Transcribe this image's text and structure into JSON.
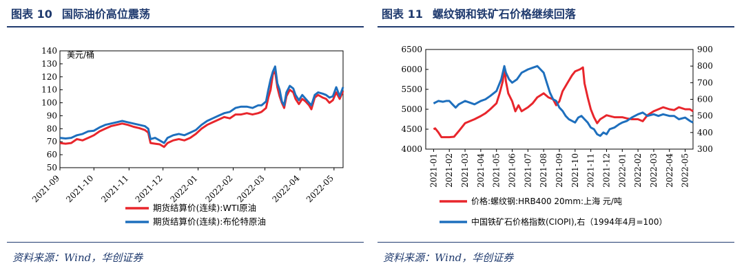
{
  "left": {
    "fig_label": "图表 10",
    "fig_title": "国际油价高位震荡",
    "source": "资料来源：Wind，华创证券",
    "chart_data": {
      "type": "line",
      "title": "国际油价高位震荡",
      "ylabel": "美元/桶",
      "ylim": [
        50,
        140
      ],
      "yticks": [
        50,
        60,
        70,
        80,
        90,
        100,
        110,
        120,
        130,
        140
      ],
      "x_tick_labels": [
        "2021-09",
        "2021-10",
        "2021-11",
        "2021-12",
        "2022-01",
        "2022-02",
        "2022-03",
        "2022-04",
        "2022-05"
      ],
      "x_tick_index": [
        0,
        30,
        61,
        91,
        122,
        153,
        181,
        212,
        242
      ],
      "series": [
        {
          "name": "期货结算价(连续):WTI原油",
          "color": "#e8262c",
          "points": [
            [
              0,
              69
            ],
            [
              5,
              68.5
            ],
            [
              10,
              69
            ],
            [
              15,
              72
            ],
            [
              20,
              71
            ],
            [
              25,
              73
            ],
            [
              30,
              75
            ],
            [
              35,
              78
            ],
            [
              40,
              80
            ],
            [
              45,
              82
            ],
            [
              50,
              83
            ],
            [
              55,
              84
            ],
            [
              60,
              83
            ],
            [
              65,
              81.5
            ],
            [
              70,
              80.5
            ],
            [
              75,
              79
            ],
            [
              78,
              77
            ],
            [
              80,
              69
            ],
            [
              84,
              68.5
            ],
            [
              88,
              68
            ],
            [
              92,
              66
            ],
            [
              95,
              69
            ],
            [
              100,
              71
            ],
            [
              105,
              72
            ],
            [
              110,
              71
            ],
            [
              115,
              73
            ],
            [
              120,
              76
            ],
            [
              125,
              80
            ],
            [
              130,
              83
            ],
            [
              135,
              85
            ],
            [
              140,
              87
            ],
            [
              145,
              89
            ],
            [
              150,
              88
            ],
            [
              155,
              91
            ],
            [
              160,
              91
            ],
            [
              165,
              92
            ],
            [
              170,
              91
            ],
            [
              175,
              92
            ],
            [
              178,
              93
            ],
            [
              182,
              96
            ],
            [
              184,
              104
            ],
            [
              186,
              110
            ],
            [
              188,
              122
            ],
            [
              190,
              124
            ],
            [
              192,
              112
            ],
            [
              194,
              105
            ],
            [
              196,
              100
            ],
            [
              198,
              96
            ],
            [
              200,
              105
            ],
            [
              203,
              110
            ],
            [
              206,
              108
            ],
            [
              208,
              103
            ],
            [
              211,
              99
            ],
            [
              214,
              103
            ],
            [
              217,
              101
            ],
            [
              220,
              98
            ],
            [
              222,
              95
            ],
            [
              225,
              104
            ],
            [
              228,
              106
            ],
            [
              232,
              104
            ],
            [
              235,
              103
            ],
            [
              238,
              100
            ],
            [
              241,
              102
            ],
            [
              244,
              108
            ],
            [
              247,
              103
            ],
            [
              250,
              109
            ]
          ]
        },
        {
          "name": "期货结算价(连续):布伦特原油",
          "color": "#1e6fbd",
          "points": [
            [
              0,
              73
            ],
            [
              5,
              72.5
            ],
            [
              10,
              73
            ],
            [
              15,
              75
            ],
            [
              20,
              76
            ],
            [
              25,
              78
            ],
            [
              30,
              78.5
            ],
            [
              35,
              81
            ],
            [
              40,
              83
            ],
            [
              45,
              84
            ],
            [
              50,
              85
            ],
            [
              55,
              86
            ],
            [
              60,
              85
            ],
            [
              65,
              84
            ],
            [
              70,
              83
            ],
            [
              75,
              82
            ],
            [
              78,
              80
            ],
            [
              80,
              72
            ],
            [
              84,
              73
            ],
            [
              88,
              71
            ],
            [
              92,
              69
            ],
            [
              95,
              73
            ],
            [
              100,
              75
            ],
            [
              105,
              76
            ],
            [
              110,
              75
            ],
            [
              115,
              77
            ],
            [
              120,
              79
            ],
            [
              125,
              83
            ],
            [
              130,
              86
            ],
            [
              135,
              88
            ],
            [
              140,
              90
            ],
            [
              145,
              92
            ],
            [
              150,
              93
            ],
            [
              155,
              96
            ],
            [
              160,
              97
            ],
            [
              165,
              97
            ],
            [
              170,
              96
            ],
            [
              175,
              98
            ],
            [
              178,
              98
            ],
            [
              182,
              101
            ],
            [
              184,
              110
            ],
            [
              186,
              118
            ],
            [
              188,
              124
            ],
            [
              190,
              128
            ],
            [
              192,
              115
            ],
            [
              194,
              110
            ],
            [
              196,
              101
            ],
            [
              198,
              98
            ],
            [
              200,
              108
            ],
            [
              203,
              113
            ],
            [
              206,
              111
            ],
            [
              208,
              106
            ],
            [
              211,
              102
            ],
            [
              214,
              106
            ],
            [
              217,
              103
            ],
            [
              220,
              100
            ],
            [
              222,
              98
            ],
            [
              225,
              106
            ],
            [
              228,
              108
            ],
            [
              232,
              107
            ],
            [
              235,
              106
            ],
            [
              238,
              104
            ],
            [
              241,
              105
            ],
            [
              244,
              112
            ],
            [
              247,
              105
            ],
            [
              250,
              112
            ]
          ]
        }
      ]
    }
  },
  "right": {
    "fig_label": "图表 11",
    "fig_title": "螺纹钢和铁矿石价格继续回落",
    "source": "资料来源：Wind，华创证券",
    "chart_data": {
      "type": "line",
      "title": "螺纹钢和铁矿石价格继续回落",
      "ylim_left": [
        4000,
        6500
      ],
      "yticks_left": [
        4000,
        4500,
        5000,
        5500,
        6000,
        6500
      ],
      "ylim_right": [
        300,
        900
      ],
      "yticks_right": [
        300,
        400,
        500,
        600,
        700,
        800,
        900
      ],
      "x_tick_labels": [
        "2021-01",
        "2021-02",
        "2021-03",
        "2021-04",
        "2021-05",
        "2021-06",
        "2021-07",
        "2021-08",
        "2021-09",
        "2021-10",
        "2021-11",
        "2021-12",
        "2022-01",
        "2022-02",
        "2022-03",
        "2022-04",
        "2022-05"
      ],
      "series": [
        {
          "name": "价格:螺纹钢:HRB400 20mm:上海 元/吨",
          "axis": "left",
          "color": "#e8262c",
          "points": [
            [
              0,
              4500
            ],
            [
              0.1,
              4520
            ],
            [
              0.3,
              4420
            ],
            [
              0.5,
              4300
            ],
            [
              1.0,
              4300
            ],
            [
              1.3,
              4310
            ],
            [
              1.6,
              4450
            ],
            [
              2.0,
              4650
            ],
            [
              2.3,
              4700
            ],
            [
              2.6,
              4750
            ],
            [
              3.0,
              4830
            ],
            [
              3.3,
              4900
            ],
            [
              3.6,
              5000
            ],
            [
              4.0,
              5150
            ],
            [
              4.2,
              5400
            ],
            [
              4.4,
              5700
            ],
            [
              4.5,
              6050
            ],
            [
              4.6,
              5700
            ],
            [
              4.75,
              5400
            ],
            [
              5.0,
              5200
            ],
            [
              5.2,
              4950
            ],
            [
              5.4,
              5100
            ],
            [
              5.6,
              4950
            ],
            [
              5.8,
              5000
            ],
            [
              6.0,
              5050
            ],
            [
              6.3,
              5150
            ],
            [
              6.6,
              5300
            ],
            [
              7.0,
              5400
            ],
            [
              7.3,
              5300
            ],
            [
              7.6,
              5250
            ],
            [
              7.8,
              5100
            ],
            [
              8.0,
              5200
            ],
            [
              8.2,
              5450
            ],
            [
              8.5,
              5650
            ],
            [
              8.8,
              5850
            ],
            [
              9.0,
              5950
            ],
            [
              9.3,
              6000
            ],
            [
              9.5,
              6050
            ],
            [
              9.6,
              5650
            ],
            [
              9.8,
              5300
            ],
            [
              10.0,
              5000
            ],
            [
              10.2,
              4800
            ],
            [
              10.4,
              4650
            ],
            [
              10.6,
              4750
            ],
            [
              10.8,
              4800
            ],
            [
              11.0,
              4850
            ],
            [
              11.5,
              4800
            ],
            [
              12.0,
              4800
            ],
            [
              12.3,
              4770
            ],
            [
              12.6,
              4750
            ],
            [
              13.0,
              4750
            ],
            [
              13.3,
              4700
            ],
            [
              13.6,
              4850
            ],
            [
              14.0,
              4950
            ],
            [
              14.3,
              5000
            ],
            [
              14.6,
              5050
            ],
            [
              15.0,
              5000
            ],
            [
              15.3,
              4980
            ],
            [
              15.6,
              5050
            ],
            [
              16.0,
              5000
            ],
            [
              16.3,
              5000
            ],
            [
              16.5,
              4950
            ]
          ]
        },
        {
          "name": "中国铁矿石价格指数(CIOPI),右（1994年4月=100）",
          "axis": "right",
          "color": "#1e6fbd",
          "points": [
            [
              0,
              575
            ],
            [
              0.3,
              590
            ],
            [
              0.6,
              585
            ],
            [
              0.8,
              590
            ],
            [
              1.0,
              590
            ],
            [
              1.2,
              570
            ],
            [
              1.4,
              550
            ],
            [
              1.6,
              570
            ],
            [
              2.0,
              590
            ],
            [
              2.3,
              580
            ],
            [
              2.6,
              570
            ],
            [
              3.0,
              590
            ],
            [
              3.3,
              600
            ],
            [
              3.6,
              620
            ],
            [
              4.0,
              650
            ],
            [
              4.3,
              720
            ],
            [
              4.5,
              800
            ],
            [
              4.6,
              760
            ],
            [
              4.8,
              720
            ],
            [
              5.0,
              700
            ],
            [
              5.3,
              720
            ],
            [
              5.6,
              760
            ],
            [
              6.0,
              780
            ],
            [
              6.3,
              790
            ],
            [
              6.6,
              800
            ],
            [
              6.8,
              780
            ],
            [
              7.0,
              760
            ],
            [
              7.2,
              700
            ],
            [
              7.4,
              640
            ],
            [
              7.6,
              600
            ],
            [
              7.8,
              590
            ],
            [
              8.0,
              550
            ],
            [
              8.2,
              530
            ],
            [
              8.4,
              500
            ],
            [
              8.6,
              480
            ],
            [
              8.8,
              470
            ],
            [
              9.0,
              460
            ],
            [
              9.2,
              490
            ],
            [
              9.4,
              500
            ],
            [
              9.6,
              480
            ],
            [
              9.8,
              460
            ],
            [
              10.0,
              430
            ],
            [
              10.2,
              420
            ],
            [
              10.4,
              390
            ],
            [
              10.6,
              380
            ],
            [
              10.8,
              400
            ],
            [
              11.0,
              390
            ],
            [
              11.2,
              420
            ],
            [
              11.5,
              430
            ],
            [
              11.8,
              450
            ],
            [
              12.0,
              460
            ],
            [
              12.3,
              470
            ],
            [
              12.6,
              490
            ],
            [
              13.0,
              510
            ],
            [
              13.3,
              520
            ],
            [
              13.6,
              500
            ],
            [
              14.0,
              510
            ],
            [
              14.3,
              500
            ],
            [
              14.6,
              510
            ],
            [
              15.0,
              500
            ],
            [
              15.3,
              500
            ],
            [
              15.6,
              480
            ],
            [
              16.0,
              490
            ],
            [
              16.3,
              470
            ],
            [
              16.5,
              460
            ]
          ]
        }
      ]
    }
  }
}
